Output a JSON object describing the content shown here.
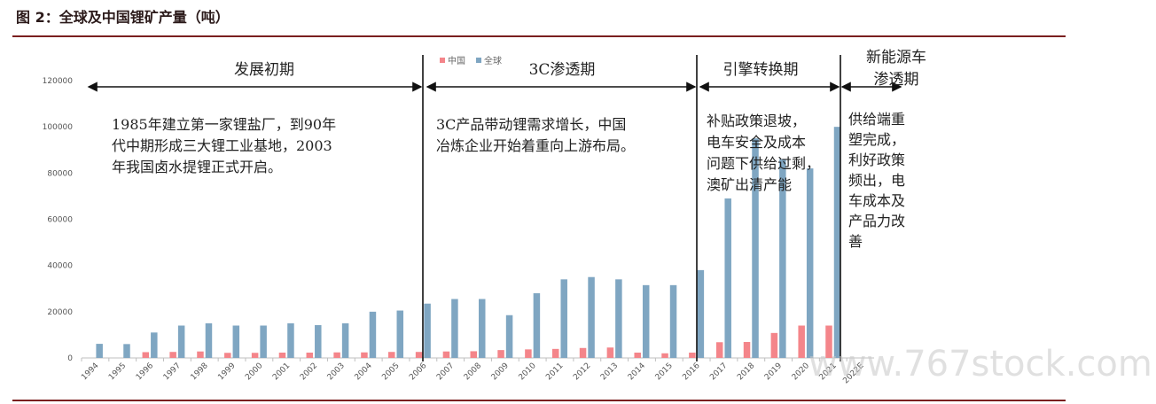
{
  "figure": {
    "title": "图 2：全球及中国锂矿产量（吨）"
  },
  "colors": {
    "china": "#f4858a",
    "global": "#7fa6c2",
    "rule": "#7a1f1f"
  },
  "chart_data": {
    "type": "bar",
    "categories": [
      "1994",
      "1995",
      "1996",
      "1997",
      "1998",
      "1999",
      "2000",
      "2001",
      "2002",
      "2003",
      "2004",
      "2005",
      "2006",
      "2007",
      "2008",
      "2009",
      "2010",
      "2011",
      "2012",
      "2013",
      "2014",
      "2015",
      "2016",
      "2017",
      "2018",
      "2019",
      "2020",
      "2021",
      "2022E"
    ],
    "series": [
      {
        "name": "中国",
        "values": [
          0,
          0,
          2500,
          2600,
          2800,
          2200,
          2200,
          2300,
          2300,
          2400,
          2400,
          2600,
          2600,
          2800,
          2900,
          3400,
          3700,
          3900,
          4300,
          4500,
          2300,
          2000,
          2300,
          6800,
          6900,
          10800,
          14000,
          14000,
          0
        ]
      },
      {
        "name": "全球",
        "values": [
          6100,
          6000,
          11000,
          14000,
          15000,
          14000,
          14000,
          15000,
          14200,
          15000,
          20000,
          20500,
          23500,
          25500,
          25500,
          18500,
          28000,
          34000,
          35000,
          34000,
          31500,
          31500,
          38000,
          69000,
          95000,
          86000,
          82000,
          100000,
          0
        ]
      }
    ],
    "ylim": [
      0,
      120000
    ],
    "yticks": [
      0,
      20000,
      40000,
      60000,
      80000,
      100000,
      120000
    ],
    "legend": {
      "position": "top",
      "items": [
        "中国",
        "全球"
      ]
    },
    "phases": [
      {
        "label": "发展初期",
        "note": [
          "1985年建立第一家锂盐厂，到90年",
          "代中期形成三大锂工业基地，2003",
          "年我国卤水提锂正式开启。"
        ]
      },
      {
        "label": "3C渗透期",
        "note": [
          "3C产品带动锂需求增长，中国",
          "冶炼企业开始着重向上游布局。"
        ]
      },
      {
        "label": "引擎转换期",
        "note": [
          "补贴政策退坡，",
          "电车安全及成本",
          "问题下供给过剩，",
          "澳矿出清产能"
        ]
      },
      {
        "label_lines": [
          "新能源车",
          "渗透期"
        ],
        "note": [
          "供给端重",
          "塑完成，",
          "利好政策",
          "频出，电",
          "车成本及",
          "产品力改",
          "善"
        ]
      }
    ]
  },
  "watermark": "www.767stock.com"
}
